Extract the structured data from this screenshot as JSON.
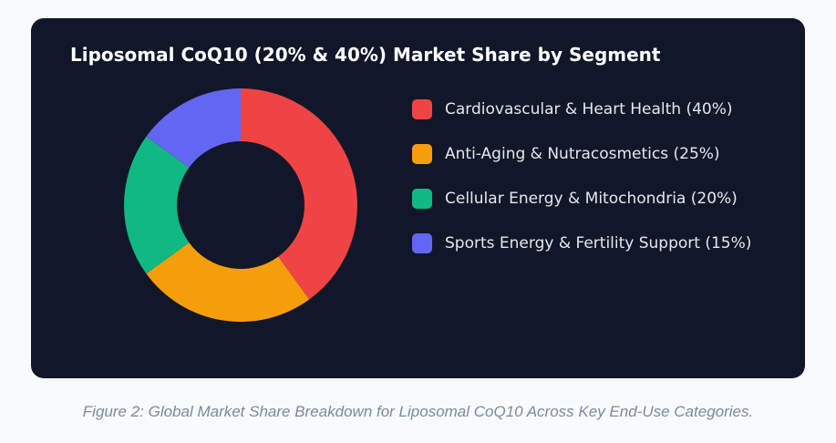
{
  "chart_data": {
    "type": "pie",
    "title": "Liposomal CoQ10 (20% & 40%) Market Share by Segment",
    "legend_position": "right",
    "categories": [
      "Cardiovascular & Heart Health (40%)",
      "Anti-Aging & Nutracosmetics (25%)",
      "Cellular Energy & Mitochondria (20%)",
      "Sports Energy & Fertility Support (15%)"
    ],
    "values": [
      40,
      25,
      20,
      15
    ],
    "colors": [
      "#ef4444",
      "#f59e0b",
      "#10b981",
      "#6366f1"
    ]
  },
  "caption": "Figure 2: Global Market Share Breakdown for Liposomal CoQ10 Across Key End-Use Categories."
}
